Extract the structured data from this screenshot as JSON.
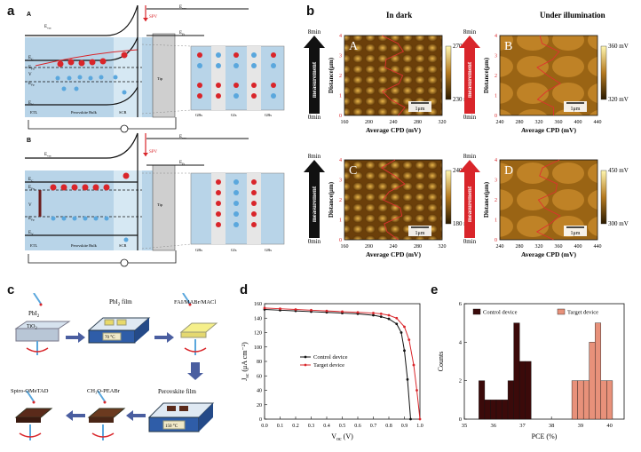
{
  "labels": {
    "a": "a",
    "b": "b",
    "c": "c",
    "d": "d",
    "e": "e",
    "A": "A",
    "B": "B"
  },
  "schemA": {
    "evac": "E",
    "evac_sub": "vac",
    "spv": "SPV",
    "ec": "E",
    "ec_sub": "C",
    "efn": "E",
    "efn_sub": "Fn",
    "vac": "V",
    "efp": "E",
    "efp_sub": "Fp",
    "ev": "E",
    "ev_sub": "V",
    "ef_tip_right": "E",
    "ef_tip_sub": "Ft",
    "evac_right": "E",
    "evac_right_sub": "vac",
    "etl": "ETL",
    "bulk": "Perovskite Bulk",
    "scr": "SCR",
    "tip": "Tip",
    "gbs": "GBs",
    "gis": "GIs"
  },
  "schemB": {
    "evac": "E",
    "evac_sub": "vac",
    "spv": "SPV",
    "ec": "E",
    "ec_sub": "C",
    "efn": "E",
    "efn_sub": "Fn",
    "vac": "V",
    "efp": "E",
    "efp_sub": "Fp",
    "ev": "E",
    "ev_sub": "V",
    "ef_tip_right": "E",
    "ef_tip_sub": "Ft",
    "evac_right": "E",
    "evac_right_sub": "vac",
    "etl": "ETL",
    "bulk": "Perovskite Bulk",
    "scr": "SCR",
    "tip": "Tip",
    "gbs": "GBs",
    "gis": "GIs"
  },
  "afm": {
    "col_dark": "In dark",
    "col_light": "Under illumination",
    "time_top": "8min",
    "time_bottom": "0min",
    "arrow_label": "measurement",
    "ylabel": "Distance(μm)",
    "xlabel": "Average CPD (mV)",
    "scalebar": "1μm",
    "yticks": [
      "0",
      "1",
      "2",
      "3",
      "4"
    ],
    "panels": [
      {
        "letter": "A",
        "cbar_max": "270 mV",
        "cbar_min": "230 mV",
        "xticks": [
          "160",
          "200",
          "240",
          "280",
          "320"
        ],
        "arrow_color": "#111111"
      },
      {
        "letter": "B",
        "cbar_max": "360 mV",
        "cbar_min": "320 mV",
        "xticks": [
          "240",
          "280",
          "320",
          "360",
          "400",
          "440"
        ],
        "arrow_color": "#d9252a"
      },
      {
        "letter": "C",
        "cbar_max": "240 mV",
        "cbar_min": "180 mV",
        "xticks": [
          "160",
          "200",
          "240",
          "280",
          "320"
        ],
        "arrow_color": "#111111"
      },
      {
        "letter": "D",
        "cbar_max": "450 mV",
        "cbar_min": "300 mV",
        "xticks": [
          "240",
          "280",
          "320",
          "360",
          "400",
          "440"
        ],
        "arrow_color": "#d9252a"
      }
    ]
  },
  "process": {
    "pbi2": "PbI",
    "pbi2_sub": "2",
    "tio2": "TiO",
    "tio2_sub": "2",
    "pbi2_film": "PbI",
    "pbi2_film_sub": "2",
    "pbi2_film_tail": " film",
    "fai": "FAI/MABr/MACl",
    "temp70": "70 °C",
    "spiro": "Spiro-OMeTAD",
    "ch3o": "CH₃O-PEABr",
    "perov_film": "Perovskite film",
    "temp150": "150 °C"
  },
  "chart_data": [
    {
      "type": "line",
      "panel": "d",
      "xlabel": "V",
      "xlabel_sub": "oc",
      "xlabel_unit": " (V)",
      "ylabel": "J",
      "ylabel_sub": "sc",
      "ylabel_unit": " (μA cm⁻²)",
      "xlim": [
        0,
        1.0
      ],
      "ylim": [
        0,
        160
      ],
      "xticks": [
        "0.0",
        "0.1",
        "0.2",
        "0.3",
        "0.4",
        "0.5",
        "0.6",
        "0.7",
        "0.8",
        "0.9",
        "1.0"
      ],
      "yticks": [
        "0",
        "20",
        "40",
        "60",
        "80",
        "100",
        "120",
        "140",
        "160"
      ],
      "legend_position": "center-right",
      "series": [
        {
          "name": "Control device",
          "color": "#111111",
          "x": [
            0,
            0.1,
            0.2,
            0.3,
            0.4,
            0.5,
            0.6,
            0.7,
            0.75,
            0.8,
            0.85,
            0.88,
            0.9,
            0.92,
            0.94
          ],
          "y": [
            152,
            151,
            150,
            149,
            148,
            147,
            146,
            144,
            142,
            139,
            132,
            120,
            95,
            55,
            0
          ]
        },
        {
          "name": "Target device",
          "color": "#d9252a",
          "x": [
            0,
            0.1,
            0.2,
            0.3,
            0.4,
            0.5,
            0.6,
            0.7,
            0.75,
            0.8,
            0.85,
            0.9,
            0.93,
            0.96,
            0.98,
            1.0
          ],
          "y": [
            154,
            153,
            152,
            151,
            150,
            149,
            148,
            147,
            146,
            144,
            140,
            128,
            110,
            75,
            40,
            0
          ]
        }
      ]
    },
    {
      "type": "bar",
      "panel": "e",
      "xlabel": "PCE (%)",
      "ylabel": "Counts",
      "xlim": [
        35,
        40.5
      ],
      "ylim": [
        0,
        6
      ],
      "xticks": [
        "35",
        "36",
        "37",
        "38",
        "39",
        "40"
      ],
      "yticks": [
        "0",
        "2",
        "4",
        "6"
      ],
      "legend_position": "top",
      "series": [
        {
          "name": "Control device",
          "color": "#3b0a0a",
          "x": [
            35.6,
            35.8,
            36.0,
            36.2,
            36.4,
            36.6,
            36.8,
            37.0,
            37.2
          ],
          "values": [
            2,
            1,
            1,
            1,
            1,
            2,
            5,
            3,
            3
          ]
        },
        {
          "name": "Target device",
          "color": "#e8917a",
          "x": [
            38.8,
            39.0,
            39.2,
            39.4,
            39.6,
            39.8,
            40.0
          ],
          "values": [
            2,
            2,
            2,
            4,
            5,
            2,
            2
          ]
        }
      ]
    }
  ]
}
